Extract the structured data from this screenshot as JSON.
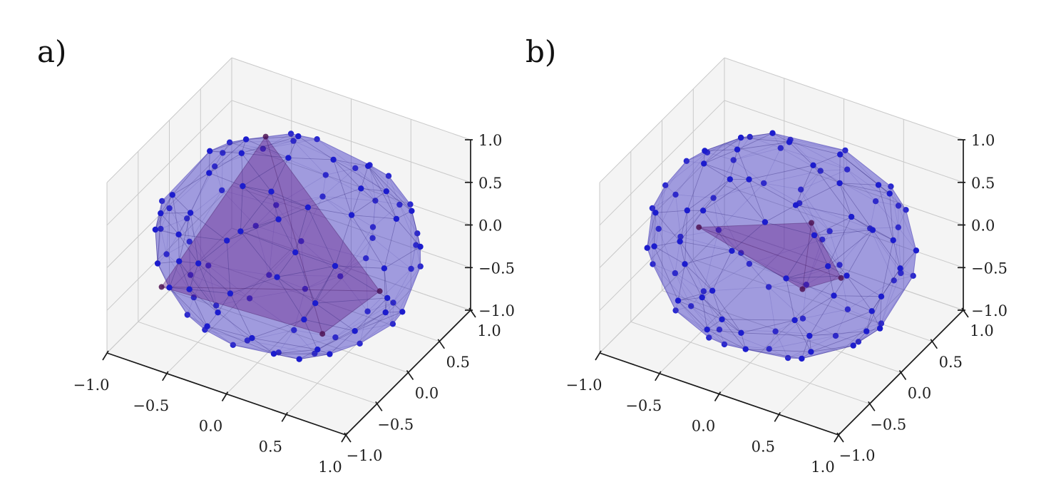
{
  "chart_data": [
    {
      "panel_label": "a)",
      "type": "scatter",
      "projection": "3d",
      "plot_kind": "point cloud on unit sphere with semi-transparent convex-hull triangulated surface and inscribed simplex (tetrahedron)",
      "n_points": 100,
      "sphere_radius": 1.0,
      "point_distribution": "approximately uniform on unit sphere",
      "simplex_vertices": [
        [
          -0.35,
          0.3,
          0.9
        ],
        [
          -0.71,
          -0.68,
          -0.32
        ],
        [
          0.48,
          0.54,
          -0.69
        ],
        [
          0.24,
          0.08,
          -0.97
        ]
      ],
      "xlim": [
        -1,
        1
      ],
      "ylim": [
        -1,
        1
      ],
      "zlim": [
        -1,
        1
      ],
      "xticks": [
        -1.0,
        -0.5,
        0.0,
        0.5,
        1.0
      ],
      "yticks": [
        -1.0,
        -0.5,
        0.0,
        0.5,
        1.0
      ],
      "zticks": [
        -1.0,
        -0.5,
        0.0,
        0.5,
        1.0
      ],
      "tick_labels": [
        "−1.0",
        "−0.5",
        "0.0",
        "0.5",
        "1.0"
      ],
      "grid": true,
      "legend": "none",
      "view": {
        "elev_deg": 30,
        "azim_deg": -60
      },
      "seed": 1
    },
    {
      "panel_label": "b)",
      "type": "scatter",
      "projection": "3d",
      "plot_kind": "point cloud on unit sphere with semi-transparent convex-hull triangulated surface and inscribed simplex (small flat tetrahedron near center)",
      "n_points": 100,
      "sphere_radius": 1.0,
      "point_distribution": "approximately uniform on unit sphere",
      "simplex_vertices": [
        [
          -0.31,
          -0.73,
          0.61
        ],
        [
          0.46,
          -0.4,
          0.79
        ],
        [
          0.17,
          0.63,
          -0.75
        ],
        [
          -0.07,
          0.47,
          -0.88
        ]
      ],
      "xlim": [
        -1,
        1
      ],
      "ylim": [
        -1,
        1
      ],
      "zlim": [
        -1,
        1
      ],
      "xticks": [
        -1.0,
        -0.5,
        0.0,
        0.5,
        1.0
      ],
      "yticks": [
        -1.0,
        -0.5,
        0.0,
        0.5,
        1.0
      ],
      "zticks": [
        -1.0,
        -0.5,
        0.0,
        0.5,
        1.0
      ],
      "tick_labels": [
        "−1.0",
        "−0.5",
        "0.0",
        "0.5",
        "1.0"
      ],
      "grid": true,
      "legend": "none",
      "view": {
        "elev_deg": 30,
        "azim_deg": -60
      },
      "seed": 2
    }
  ],
  "style": {
    "background": "#ffffff",
    "pane_color": "#f4f4f4",
    "grid_color": "#c9c9c9",
    "axis_line_color": "#1a1a1a",
    "tick_label_color": "#1f1f1f",
    "point_color": "#1c1ccd",
    "surface_fill": "rgba(57,46,196,0.45)",
    "surface_outline": "rgba(80,70,190,0.5)",
    "mesh_edge_color": "rgb(45,35,120)",
    "mesh_edge_opacity_front": 0.38,
    "mesh_edge_opacity_back": 0.16,
    "simplex_face_fill": "rgba(102,20,130,0.20)",
    "simplex_edge_color": "rgba(60,15,85,0.35)",
    "simplex_vertex_color": "#4d1254"
  }
}
